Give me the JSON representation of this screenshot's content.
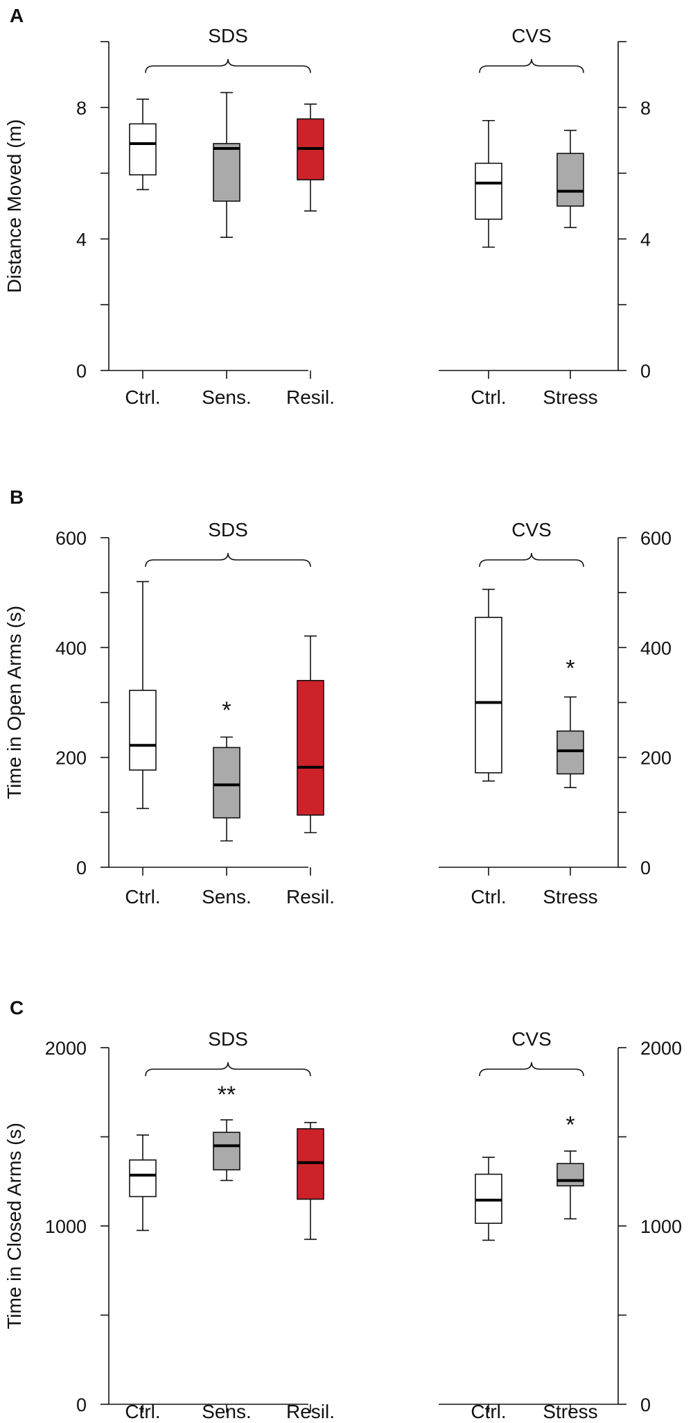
{
  "colors": {
    "white": "#ffffff",
    "gray": "#aaaaaa",
    "red": "#cc2229",
    "ink": "#111111"
  },
  "chart_data": [
    {
      "type": "box",
      "panel": "A",
      "ylabel": "Distance Moved (m)",
      "ylim": [
        0,
        10
      ],
      "yticks_labeled": [
        0,
        4,
        8
      ],
      "yticks_minor": [
        2,
        6,
        10
      ],
      "groups": [
        {
          "label": "SDS",
          "boxes": [
            {
              "category": "Ctrl.",
              "fill": "white",
              "whisker_low": 5.5,
              "q1": 5.95,
              "median": 6.9,
              "q3": 7.5,
              "whisker_high": 8.25
            },
            {
              "category": "Sens.",
              "fill": "gray",
              "whisker_low": 4.05,
              "q1": 5.15,
              "median": 6.75,
              "q3": 6.9,
              "whisker_high": 8.45
            },
            {
              "category": "Resil.",
              "fill": "red",
              "whisker_low": 4.85,
              "q1": 5.8,
              "median": 6.75,
              "q3": 7.65,
              "whisker_high": 8.1
            }
          ]
        },
        {
          "label": "CVS",
          "boxes": [
            {
              "category": "Ctrl.",
              "fill": "white",
              "whisker_low": 3.75,
              "q1": 4.6,
              "median": 5.7,
              "q3": 6.3,
              "whisker_high": 7.6
            },
            {
              "category": "Stress",
              "fill": "gray",
              "whisker_low": 4.35,
              "q1": 5.0,
              "median": 5.45,
              "q3": 6.6,
              "whisker_high": 7.3
            }
          ]
        }
      ],
      "significance": []
    },
    {
      "type": "box",
      "panel": "B",
      "ylabel": "Time in Open Arms (s)",
      "ylim": [
        0,
        600
      ],
      "yticks_labeled": [
        0,
        200,
        400,
        600
      ],
      "yticks_minor": [
        100,
        300,
        500
      ],
      "groups": [
        {
          "label": "SDS",
          "boxes": [
            {
              "category": "Ctrl.",
              "fill": "white",
              "whisker_low": 107,
              "q1": 177,
              "median": 222,
              "q3": 322,
              "whisker_high": 520
            },
            {
              "category": "Sens.",
              "fill": "gray",
              "whisker_low": 48,
              "q1": 90,
              "median": 150,
              "q3": 218,
              "whisker_high": 237
            },
            {
              "category": "Resil.",
              "fill": "red",
              "whisker_low": 63,
              "q1": 95,
              "median": 182,
              "q3": 340,
              "whisker_high": 421
            }
          ]
        },
        {
          "label": "CVS",
          "boxes": [
            {
              "category": "Ctrl.",
              "fill": "white",
              "whisker_low": 157,
              "q1": 172,
              "median": 300,
              "q3": 455,
              "whisker_high": 506
            },
            {
              "category": "Stress",
              "fill": "gray",
              "whisker_low": 145,
              "q1": 170,
              "median": 212,
              "q3": 248,
              "whisker_high": 310
            }
          ]
        }
      ],
      "significance": [
        {
          "group": 0,
          "box": 1,
          "label": "*",
          "y": 292
        },
        {
          "group": 1,
          "box": 1,
          "label": "*",
          "y": 368
        }
      ]
    },
    {
      "type": "box",
      "panel": "C",
      "ylabel": "Time in Closed Arms (s)",
      "ylim": [
        0,
        2000
      ],
      "yticks_labeled": [
        0,
        1000,
        2000
      ],
      "yticks_minor": [
        500,
        1500
      ],
      "groups": [
        {
          "label": "SDS",
          "boxes": [
            {
              "category": "Ctrl.",
              "fill": "white",
              "whisker_low": 975,
              "q1": 1165,
              "median": 1285,
              "q3": 1370,
              "whisker_high": 1510
            },
            {
              "category": "Sens.",
              "fill": "gray",
              "whisker_low": 1255,
              "q1": 1315,
              "median": 1450,
              "q3": 1525,
              "whisker_high": 1595
            },
            {
              "category": "Resil.",
              "fill": "red",
              "whisker_low": 925,
              "q1": 1150,
              "median": 1355,
              "q3": 1545,
              "whisker_high": 1580
            }
          ]
        },
        {
          "label": "CVS",
          "boxes": [
            {
              "category": "Ctrl.",
              "fill": "white",
              "whisker_low": 920,
              "q1": 1015,
              "median": 1145,
              "q3": 1290,
              "whisker_high": 1385
            },
            {
              "category": "Stress",
              "fill": "gray",
              "whisker_low": 1040,
              "q1": 1225,
              "median": 1255,
              "q3": 1350,
              "whisker_high": 1420
            }
          ]
        }
      ],
      "significance": [
        {
          "group": 0,
          "box": 1,
          "label": "**",
          "y": 1755
        },
        {
          "group": 1,
          "box": 1,
          "label": "*",
          "y": 1585
        }
      ]
    }
  ]
}
